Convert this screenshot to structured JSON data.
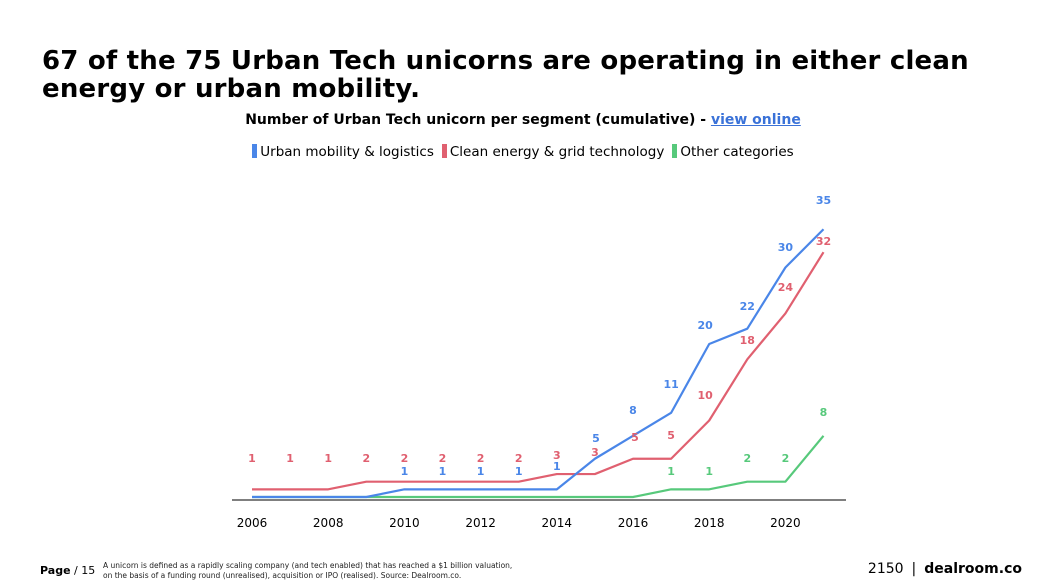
{
  "headline": "67 of the 75 Urban Tech unicorns are operating in either clean energy or urban mobility.",
  "chart_title_text": "Number of Urban Tech unicorn per segment (cumulative) - ",
  "chart_title_link": "view online",
  "footer": {
    "page_label": "Page",
    "page_number": "/ 15",
    "footnote_line1": "A unicorn is defined as a rapidly scaling company (and tech enabled) that has reached a $1 billion valuation,",
    "footnote_line2": "on the basis of a funding round (unrealised), acquisition or IPO (realised). Source: Dealroom.co.",
    "brand_2150": "2150",
    "brand_sep": "|",
    "brand_dealroom": "dealroom.co"
  },
  "chart_data": {
    "type": "line",
    "title": "Number of Urban Tech unicorn per segment (cumulative) - view online",
    "x": [
      2006,
      2007,
      2008,
      2009,
      2010,
      2011,
      2012,
      2013,
      2014,
      2015,
      2016,
      2017,
      2018,
      2019,
      2020,
      2021
    ],
    "x_tick_labels": [
      "2006",
      "2008",
      "2010",
      "2012",
      "2014",
      "2016",
      "2018",
      "2020"
    ],
    "x_ticks": [
      2006,
      2008,
      2010,
      2012,
      2014,
      2016,
      2018,
      2020
    ],
    "ylim": [
      0,
      36
    ],
    "grid": false,
    "legend_position": "top-center",
    "series": [
      {
        "name": "Urban mobility & logistics",
        "color": "#4a86e8",
        "values": [
          0,
          0,
          0,
          0,
          1,
          1,
          1,
          1,
          1,
          5,
          8,
          11,
          20,
          22,
          30,
          35
        ],
        "labels": [
          null,
          null,
          null,
          null,
          "1",
          "1",
          "1",
          "1",
          "1",
          "5",
          "8",
          "11",
          "20",
          "22",
          "30",
          "35"
        ]
      },
      {
        "name": "Clean energy & grid technology",
        "color": "#e06070",
        "values": [
          1,
          1,
          1,
          2,
          2,
          2,
          2,
          2,
          3,
          3,
          5,
          5,
          10,
          18,
          24,
          32
        ],
        "labels": [
          "1",
          "1",
          "1",
          "2",
          "2",
          "2",
          "2",
          "2",
          "3",
          "3",
          "5",
          "5",
          "10",
          "18",
          "24",
          "32"
        ]
      },
      {
        "name": "Other categories",
        "color": "#57c97b",
        "values": [
          0,
          0,
          0,
          0,
          0,
          0,
          0,
          0,
          0,
          0,
          0,
          1,
          1,
          2,
          2,
          8
        ],
        "labels": [
          null,
          null,
          null,
          null,
          null,
          null,
          null,
          null,
          null,
          null,
          null,
          "1",
          "1",
          "2",
          "2",
          "8"
        ]
      }
    ]
  }
}
